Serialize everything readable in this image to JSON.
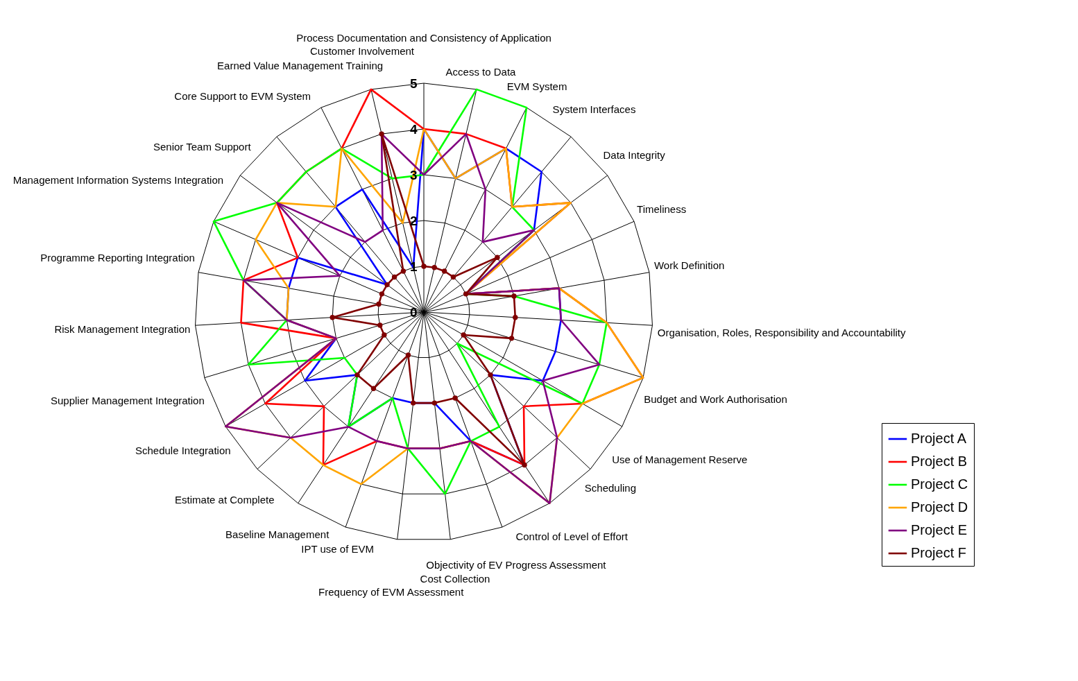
{
  "chart_data": {
    "type": "radar",
    "categories": [
      "Process Documentation and Consistency of Application",
      "Access to Data",
      "EVM System",
      "System Interfaces",
      "Data Integrity",
      "Timeliness",
      "Work Definition",
      "Organisation, Roles, Responsibility and Accountability",
      "Budget and Work Authorisation",
      "Use of Management Reserve",
      "Scheduling",
      "Control of Level of Effort",
      "Objectivity of EV Progress Assessment",
      "Cost Collection",
      "Frequency of EVM Assessment",
      "IPT use of EVM",
      "Baseline Management",
      "Estimate at Complete",
      "Schedule Integration",
      "Supplier Management Integration",
      "Risk Management Integration",
      "Programme Reporting Integration",
      "Management Information Systems Integration",
      "Senior Team Support",
      "Core Support to EVM System",
      "Earned Value Management Training",
      "Customer Involvement"
    ],
    "series": [
      {
        "name": "Project A",
        "color": "#0000ff",
        "values": [
          4,
          3,
          4,
          4,
          3,
          1,
          3,
          3,
          3,
          3,
          2,
          4,
          3,
          2,
          2,
          2,
          3,
          2,
          3,
          2,
          3,
          3,
          3,
          1,
          3,
          3,
          1
        ]
      },
      {
        "name": "Project B",
        "color": "#ff0000",
        "values": [
          4,
          4,
          4,
          3,
          4,
          1,
          3,
          4,
          5,
          4,
          3,
          4,
          3,
          3,
          3,
          3,
          4,
          3,
          4,
          2,
          4,
          4,
          3,
          4,
          4,
          4,
          5
        ]
      },
      {
        "name": "Project C",
        "color": "#00ff00",
        "values": [
          3,
          5,
          5,
          3,
          3,
          1,
          2,
          4,
          4,
          4,
          1,
          3,
          3,
          4,
          3,
          2,
          3,
          2,
          2,
          4,
          3,
          4,
          5,
          4,
          4,
          4,
          3
        ]
      },
      {
        "name": "Project D",
        "color": "#ffa500",
        "values": [
          4,
          3,
          4,
          3,
          4,
          1,
          3,
          4,
          5,
          4,
          4,
          5,
          3,
          3,
          3,
          4,
          4,
          4,
          5,
          2,
          3,
          3,
          4,
          4,
          3,
          4,
          2
        ]
      },
      {
        "name": "Project E",
        "color": "#800080",
        "values": [
          3,
          4,
          3,
          2,
          3,
          1,
          3,
          3,
          4,
          3,
          4,
          5,
          3,
          3,
          3,
          3,
          3,
          4,
          5,
          2,
          3,
          4,
          2,
          4,
          2,
          2,
          4
        ]
      },
      {
        "name": "Project F",
        "color": "#800000",
        "marker": "circle",
        "values": [
          1,
          1,
          1,
          1,
          2,
          1,
          2,
          2,
          2,
          1,
          2,
          4,
          2,
          2,
          2,
          1,
          2,
          2,
          1,
          1,
          2,
          1,
          1,
          1,
          1,
          1,
          4
        ]
      }
    ],
    "ylim": [
      0,
      5
    ],
    "yticks": [
      0,
      1,
      2,
      3,
      4,
      5
    ],
    "grid": true,
    "legend": "bottom right"
  }
}
